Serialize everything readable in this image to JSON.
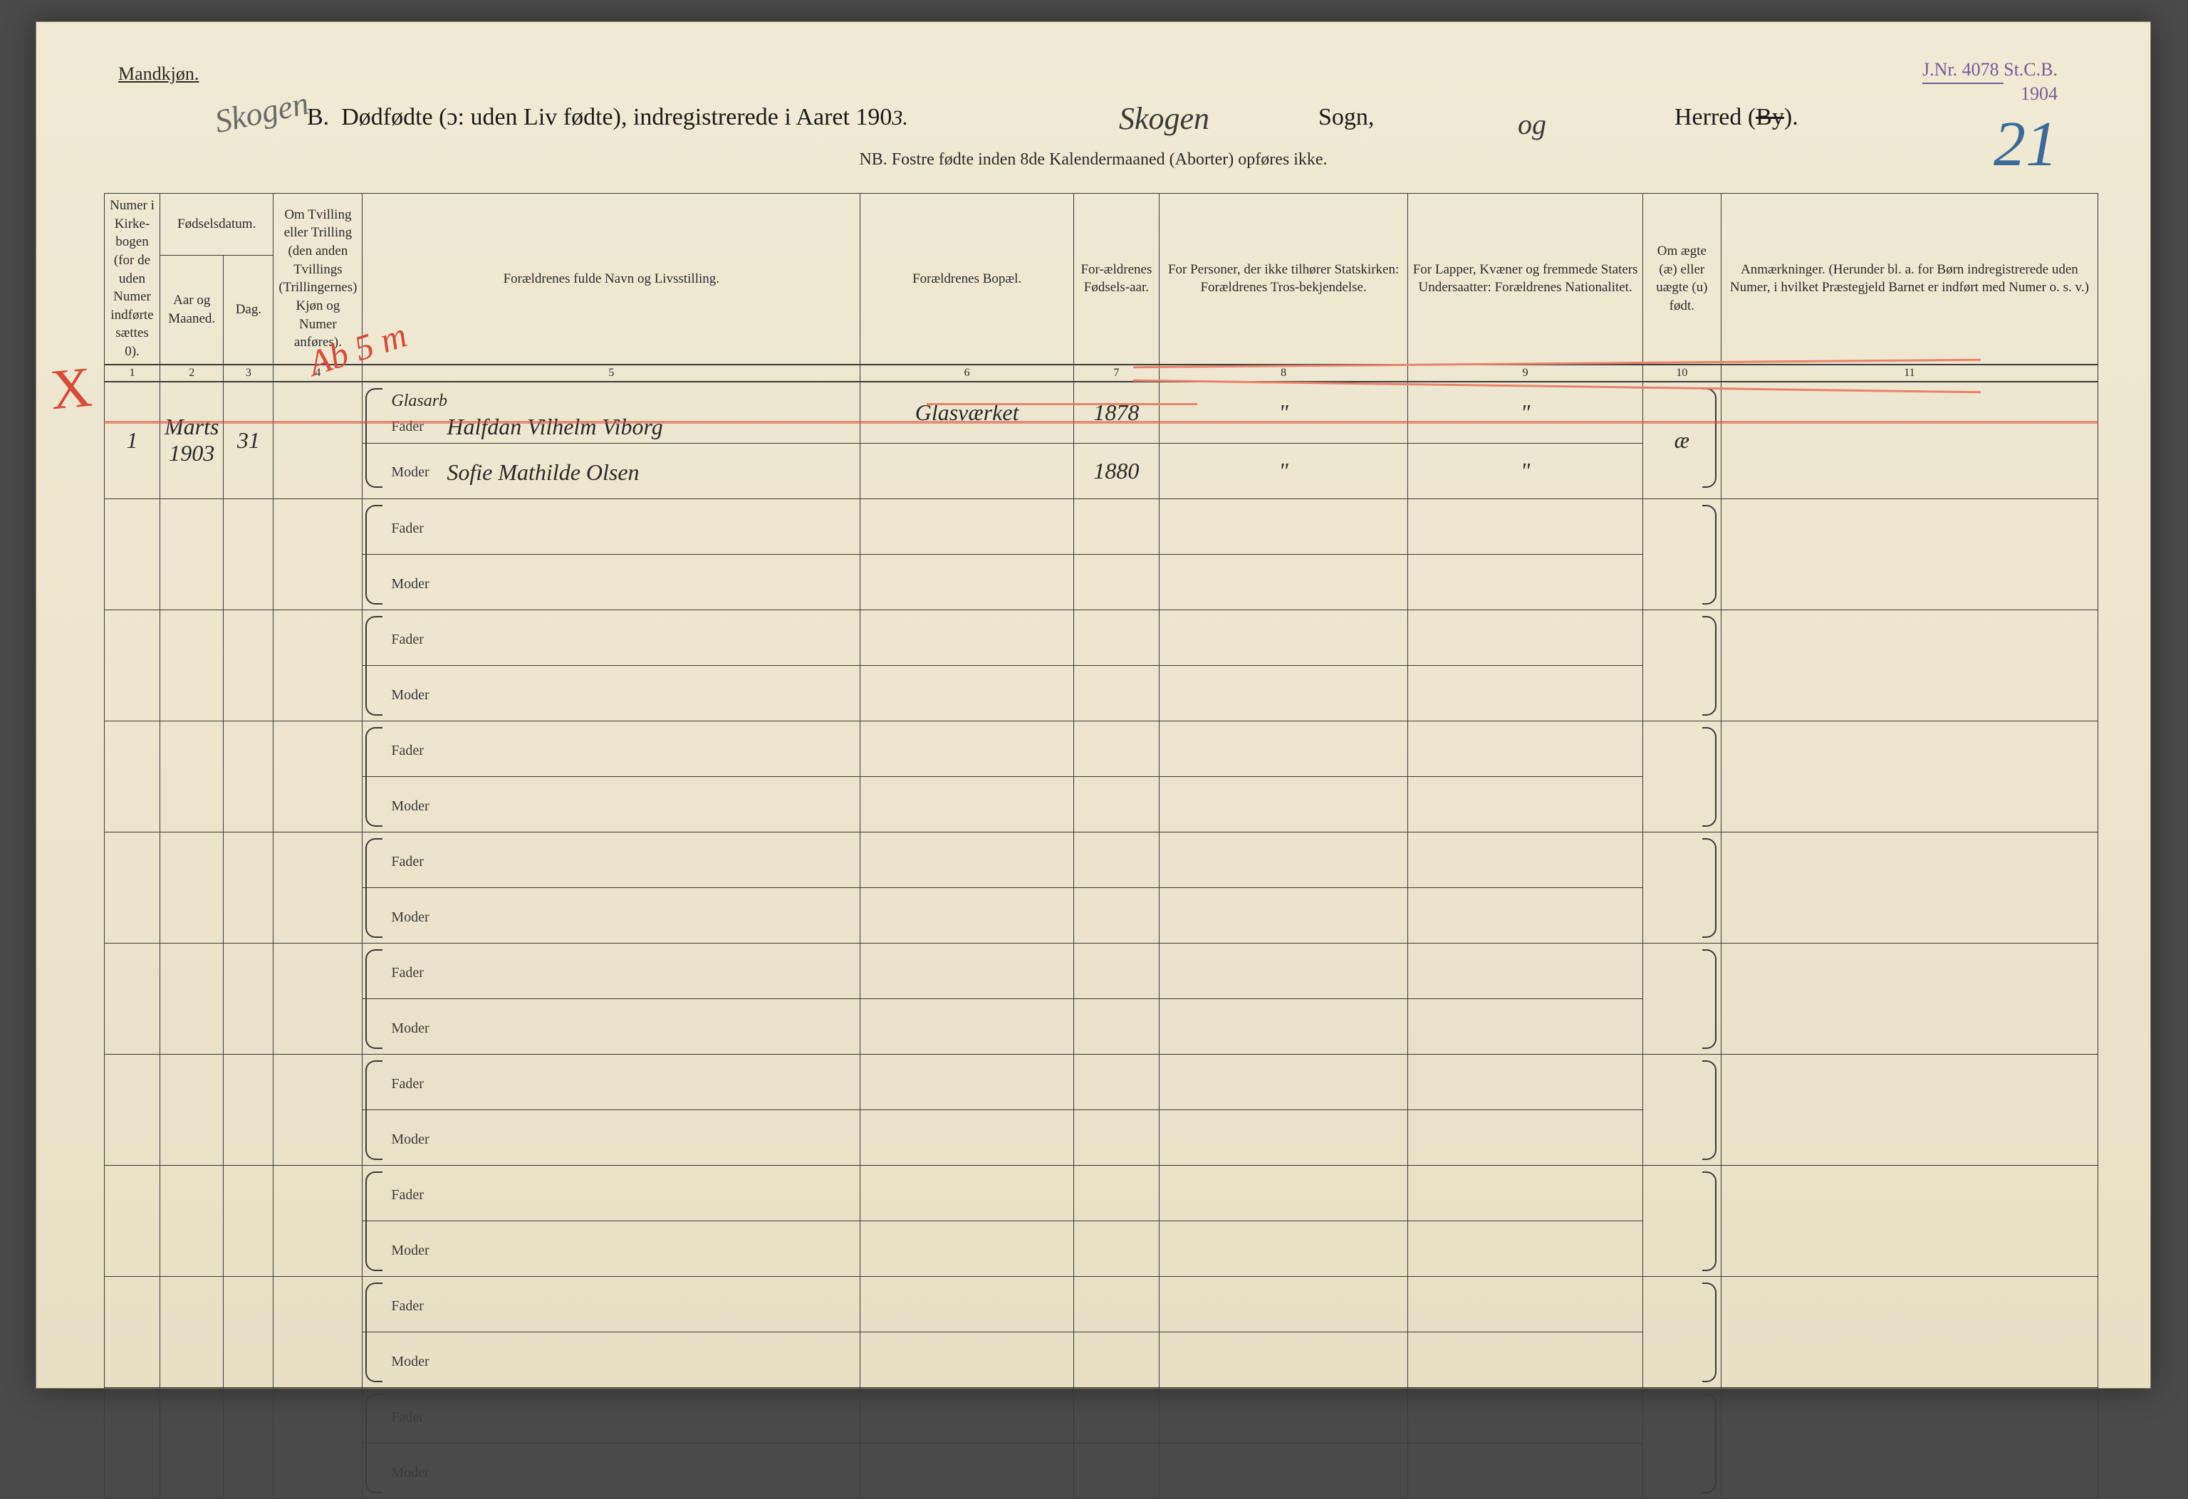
{
  "header": {
    "mandkjon": "Mandkjøn.",
    "section_letter": "B.",
    "title_main": "Dødfødte (ɔ: uden Liv fødte), indregistrerede i Aaret 190",
    "year_suffix": "3.",
    "sogn_handwritten": "Skogen",
    "sogn_label": "Sogn,",
    "og_hand": "og",
    "herred_label": "Herred (",
    "herred_by": "By",
    "herred_close": ").",
    "skogen_diag": "Skogen",
    "nb": "NB.  Fostre fødte inden 8de Kalendermaaned (Aborter) opføres ikke.",
    "stamp_jnr_label": "J.Nr.",
    "stamp_jnr": "4078",
    "stamp_stcb": "St.C.B.",
    "stamp_year": "1904",
    "page_number": "21"
  },
  "columns": {
    "c1": "Numer i Kirke-bogen (for de uden Numer indførte sættes 0).",
    "c2_top": "Fødselsdatum.",
    "c2a": "Aar og Maaned.",
    "c2b": "Dag.",
    "c4": "Om Tvilling eller Trilling (den anden Tvillings (Trillingernes) Kjøn og Numer anføres).",
    "c5": "Forældrenes fulde Navn og Livsstilling.",
    "c6": "Forældrenes Bopæl.",
    "c7": "For-ældrenes Fødsels-aar.",
    "c8": "For Personer, der ikke tilhører Statskirken: Forældrenes Tros-bekjendelse.",
    "c9": "For Lapper, Kvæner og fremmede Staters Undersaatter: Forældrenes Nationalitet.",
    "c10": "Om ægte (æ) eller uægte (u) født.",
    "c11": "Anmærkninger. (Herunder bl. a. for Børn indregistrerede uden Numer, i hvilket Præstegjeld Barnet er indført med Numer o. s. v.)"
  },
  "colnums": [
    "1",
    "2",
    "3",
    "4",
    "5",
    "6",
    "7",
    "8",
    "9",
    "10",
    "11"
  ],
  "labels": {
    "fader": "Fader",
    "moder": "Moder"
  },
  "entry": {
    "num": "1",
    "aar": "Marts 1903",
    "dag": "31",
    "occupation": "Glasarb",
    "fader_name": "Halfdan Vilhelm Viborg",
    "moder_name": "Sofie Mathilde Olsen",
    "bopael": "Glasværket",
    "fader_aar": "1878",
    "moder_aar": "1880",
    "c8f": "\"",
    "c8m": "\"",
    "c9f": "\"",
    "c9m": "\"",
    "aegte": "æ"
  },
  "marks": {
    "red_cross": "X",
    "red_ab": "Ab 5 m"
  },
  "style": {
    "paper_bg": "#ede5cc",
    "ink": "#2a2a2a",
    "red": "#d84a3a",
    "stamp": "#7a5a9a",
    "blue_pencil": "#3a6a9a",
    "handwriting_font": "cursive",
    "print_font": "Times New Roman",
    "border_color": "#3a3a3a",
    "num_blank_rows": 9
  }
}
